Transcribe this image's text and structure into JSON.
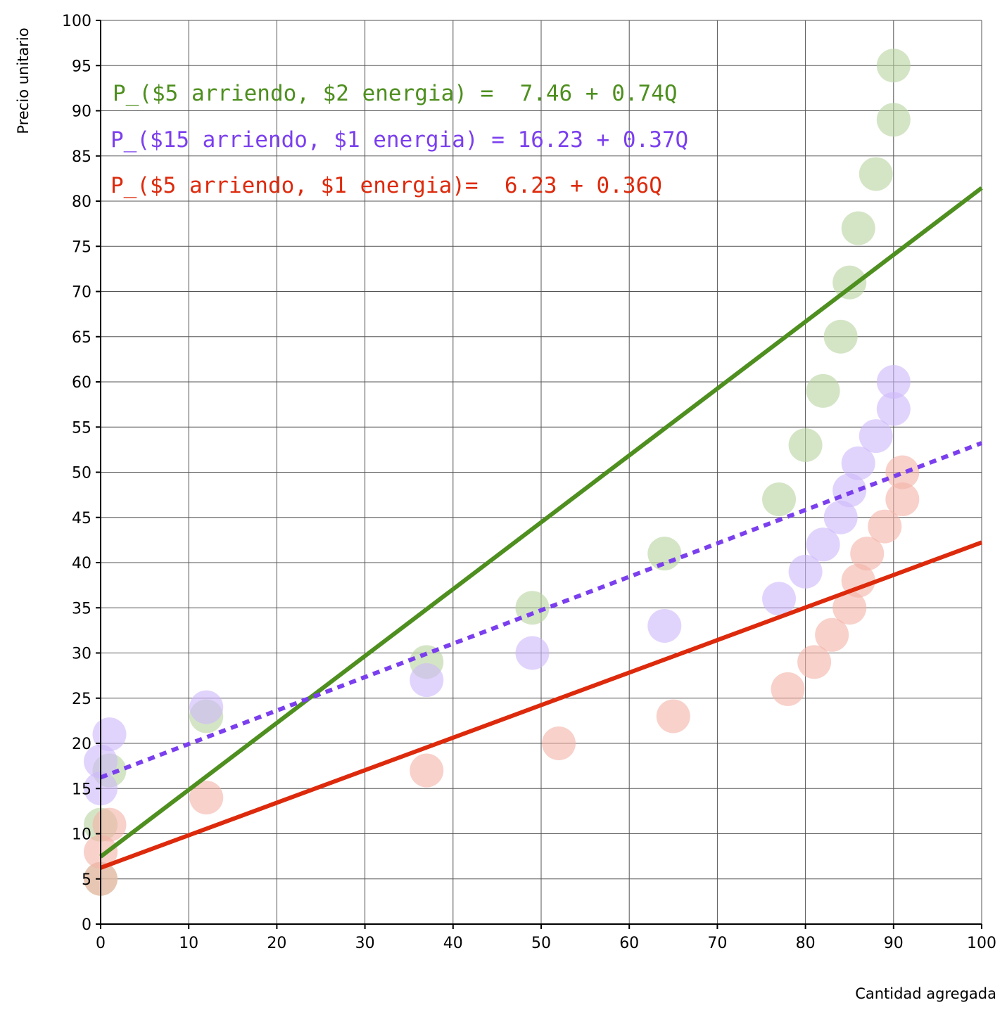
{
  "chart_data": {
    "type": "scatter",
    "xlabel": "Cantidad agregada",
    "ylabel": "Precio unitario",
    "xlim": [
      0,
      100
    ],
    "ylim": [
      0,
      100
    ],
    "x_ticks": [
      "0",
      "10",
      "20",
      "30",
      "40",
      "50",
      "60",
      "70",
      "80",
      "90",
      "100"
    ],
    "y_ticks": [
      "0",
      "5",
      "10",
      "15",
      "20",
      "25",
      "30",
      "35",
      "40",
      "45",
      "50",
      "55",
      "60",
      "65",
      "70",
      "75",
      "80",
      "85",
      "90",
      "95",
      "100"
    ],
    "grid": true,
    "series": [
      {
        "color": "#4e8f1f",
        "point_color": "#b7d3a0",
        "points": [
          [
            0,
            5
          ],
          [
            0,
            11
          ],
          [
            1,
            17
          ],
          [
            12,
            23
          ],
          [
            37,
            29
          ],
          [
            49,
            35
          ],
          [
            64,
            41
          ],
          [
            77,
            47
          ],
          [
            80,
            53
          ],
          [
            82,
            59
          ],
          [
            84,
            65
          ],
          [
            85,
            71
          ],
          [
            86,
            77
          ],
          [
            88,
            83
          ],
          [
            90,
            89
          ],
          [
            90,
            95
          ]
        ],
        "fit": {
          "intercept": 7.46,
          "slope": 0.74,
          "style": "solid"
        },
        "annotation": "P_($5 arriendo, $2 energia) =  7.46 + 0.74Q"
      },
      {
        "color": "#7b3fee",
        "point_color": "#cdb8fa",
        "points": [
          [
            0,
            15
          ],
          [
            0,
            18
          ],
          [
            1,
            21
          ],
          [
            12,
            24
          ],
          [
            37,
            27
          ],
          [
            49,
            30
          ],
          [
            64,
            33
          ],
          [
            77,
            36
          ],
          [
            80,
            39
          ],
          [
            82,
            42
          ],
          [
            84,
            45
          ],
          [
            85,
            48
          ],
          [
            86,
            51
          ],
          [
            88,
            54
          ],
          [
            90,
            57
          ],
          [
            90,
            60
          ]
        ],
        "fit": {
          "intercept": 16.23,
          "slope": 0.37,
          "style": "dotted"
        },
        "annotation": "P_($15 arriendo, $1 energia) = 16.23 + 0.37Q"
      },
      {
        "color": "#dd2a0c",
        "point_color": "#f3b3a6",
        "points": [
          [
            0,
            5
          ],
          [
            0,
            8
          ],
          [
            1,
            11
          ],
          [
            12,
            14
          ],
          [
            37,
            17
          ],
          [
            52,
            20
          ],
          [
            65,
            23
          ],
          [
            78,
            26
          ],
          [
            81,
            29
          ],
          [
            83,
            32
          ],
          [
            85,
            35
          ],
          [
            86,
            38
          ],
          [
            87,
            41
          ],
          [
            89,
            44
          ],
          [
            91,
            47
          ],
          [
            91,
            50
          ]
        ],
        "fit": {
          "intercept": 6.23,
          "slope": 0.36,
          "style": "solid"
        },
        "annotation": "P_($5 arriendo, $1 energia)=  6.23 + 0.36Q"
      }
    ]
  }
}
